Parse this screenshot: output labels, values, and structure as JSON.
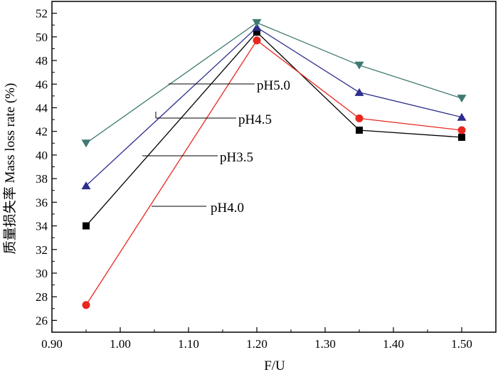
{
  "chart_data": {
    "type": "line",
    "title": "",
    "xlabel": "F/U",
    "ylabel": "质量损失率 Mass loss rate (%)",
    "xlim": [
      0.9,
      1.55
    ],
    "ylim": [
      25,
      53
    ],
    "xticks": [
      "0.90",
      "1.00",
      "1.10",
      "1.20",
      "1.30",
      "1.40",
      "1.50"
    ],
    "yticks": [
      "26",
      "28",
      "30",
      "32",
      "34",
      "36",
      "38",
      "40",
      "42",
      "44",
      "46",
      "48",
      "50",
      "52"
    ],
    "x": [
      0.95,
      1.2,
      1.35,
      1.5
    ],
    "series": [
      {
        "name": "pH3.5",
        "color": "#000000",
        "marker": "square",
        "values": [
          34.0,
          50.4,
          42.1,
          41.5
        ]
      },
      {
        "name": "pH4.0",
        "color": "#e8271f",
        "marker": "circle",
        "values": [
          27.3,
          49.7,
          43.1,
          42.1
        ]
      },
      {
        "name": "pH4.5",
        "color": "#2e2e8f",
        "marker": "triangle-up",
        "values": [
          37.4,
          50.8,
          45.3,
          43.2
        ]
      },
      {
        "name": "pH5.0",
        "color": "#3f7a72",
        "marker": "triangle-down",
        "values": [
          41.0,
          51.2,
          47.6,
          44.8
        ]
      }
    ],
    "annotations": [
      {
        "text": "pH5.0",
        "series": "pH5.0"
      },
      {
        "text": "pH4.5",
        "series": "pH4.5"
      },
      {
        "text": "pH3.5",
        "series": "pH3.5"
      },
      {
        "text": "pH4.0",
        "series": "pH4.0"
      }
    ]
  }
}
